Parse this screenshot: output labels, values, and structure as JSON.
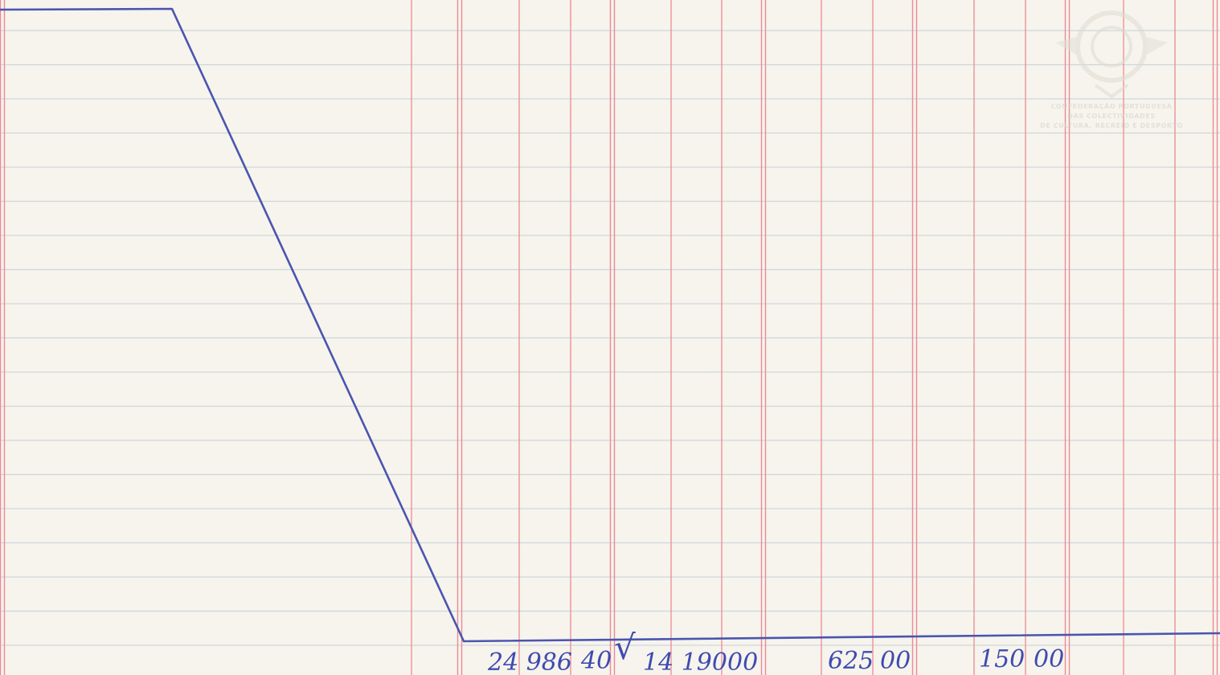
{
  "ledger": {
    "amounts": [
      {
        "whole": "24 986",
        "cents": "40"
      },
      {
        "whole": "14 190",
        "cents": "00"
      },
      {
        "whole": "625",
        "cents": "00"
      },
      {
        "whole": "150",
        "cents": "00"
      }
    ],
    "check_mark": "√"
  },
  "watermark": {
    "line1": "CONFEDERAÇÃO PORTUGUESA",
    "line2": "DAS COLECTIVIDADES",
    "line3": "DE CULTURA, RECREIO E DESPORTO"
  },
  "colors": {
    "paper": "#f6f4ec",
    "ruling_red": "#ec8a94",
    "ruling_blue": "#cfd6dc",
    "ink": "#4a55b0"
  }
}
